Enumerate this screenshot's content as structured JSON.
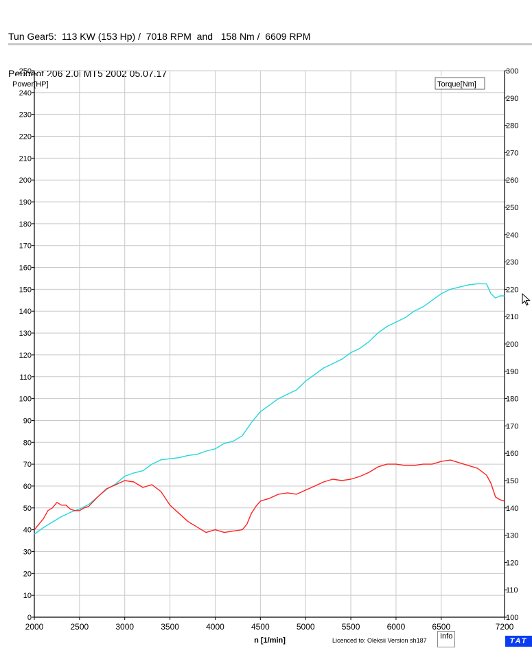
{
  "header": {
    "line1": "Tun Gear5:  113 KW (153 Hp) /  7018 RPM  and   158 Nm /  6609 RPM",
    "line2": "Peugeot 206 2.0i MT5 2002 05.07.17"
  },
  "footer": {
    "licence": "Licenced to: Oleksii   Version sh187",
    "info_label": "Info",
    "badge": "TAT"
  },
  "colors": {
    "power": "#21d7dc",
    "torque": "#ff2020",
    "grid": "#c8c8c8"
  },
  "chart_data": {
    "type": "line",
    "title": "",
    "xlabel": "n  [1/min]",
    "ylabel": "Power[HP]",
    "y2label": "Torque[Nm]",
    "xlim": [
      2000,
      7200
    ],
    "ylim": [
      0,
      250
    ],
    "y2lim": [
      100,
      300
    ],
    "xticks": [
      2000,
      2500,
      3000,
      3500,
      4000,
      4500,
      5000,
      5500,
      6000,
      6500,
      7200
    ],
    "yticks": [
      0,
      10,
      20,
      30,
      40,
      50,
      60,
      70,
      80,
      90,
      100,
      110,
      120,
      130,
      140,
      150,
      160,
      170,
      180,
      190,
      200,
      210,
      220,
      230,
      240,
      250
    ],
    "y2ticks": [
      100,
      110,
      120,
      130,
      140,
      150,
      160,
      170,
      180,
      190,
      200,
      210,
      220,
      230,
      240,
      250,
      260,
      270,
      280,
      290,
      300
    ],
    "grid": true,
    "series": [
      {
        "name": "Power[HP]",
        "axis": "left",
        "x": [
          2000,
          2100,
          2200,
          2300,
          2400,
          2500,
          2600,
          2700,
          2800,
          2900,
          3000,
          3100,
          3200,
          3300,
          3400,
          3500,
          3600,
          3700,
          3800,
          3900,
          4000,
          4100,
          4200,
          4300,
          4400,
          4500,
          4600,
          4700,
          4800,
          4900,
          5000,
          5100,
          5200,
          5300,
          5400,
          5500,
          5600,
          5700,
          5800,
          5900,
          6000,
          6100,
          6200,
          6300,
          6400,
          6500,
          6600,
          6700,
          6800,
          6900,
          7000,
          7050,
          7100,
          7150,
          7200
        ],
        "values": [
          38,
          41,
          43.5,
          46,
          48,
          49.5,
          51.5,
          55,
          58.5,
          61,
          64.5,
          66,
          67,
          70,
          72,
          72.5,
          73,
          74,
          74.5,
          76,
          77,
          79.5,
          80.5,
          83,
          89,
          94,
          97,
          100,
          102,
          104,
          108,
          111,
          114,
          116,
          118,
          121,
          123,
          126,
          130,
          133,
          135,
          137,
          140,
          142,
          145,
          148,
          150,
          151,
          152,
          152.5,
          152.5,
          148,
          146,
          147,
          147
        ]
      },
      {
        "name": "Torque[Nm]",
        "axis": "right",
        "x": [
          2000,
          2050,
          2100,
          2150,
          2200,
          2250,
          2300,
          2350,
          2400,
          2450,
          2500,
          2550,
          2600,
          2700,
          2800,
          2900,
          3000,
          3100,
          3200,
          3300,
          3400,
          3500,
          3600,
          3700,
          3800,
          3900,
          4000,
          4100,
          4200,
          4300,
          4350,
          4400,
          4450,
          4500,
          4600,
          4700,
          4800,
          4900,
          5000,
          5100,
          5200,
          5300,
          5400,
          5500,
          5600,
          5700,
          5800,
          5900,
          6000,
          6100,
          6200,
          6300,
          6400,
          6500,
          6600,
          6700,
          6800,
          6900,
          7000,
          7050,
          7100,
          7150,
          7200
        ],
        "values": [
          132,
          134,
          136,
          139,
          140,
          142,
          141,
          141,
          139.5,
          139,
          139,
          140,
          140.5,
          144,
          147,
          148.5,
          150,
          149.5,
          147.5,
          148.5,
          146,
          141,
          138,
          135,
          133,
          131,
          132,
          131,
          131.5,
          132,
          134,
          138,
          140.5,
          142.5,
          143.5,
          145,
          145.5,
          145,
          146.5,
          148,
          149.5,
          150.5,
          150,
          150.5,
          151.5,
          153,
          155,
          156,
          156,
          155.5,
          155.5,
          156,
          156,
          157,
          157.5,
          156.5,
          155.5,
          154.5,
          152,
          149,
          144,
          143,
          142.5
        ]
      }
    ]
  }
}
